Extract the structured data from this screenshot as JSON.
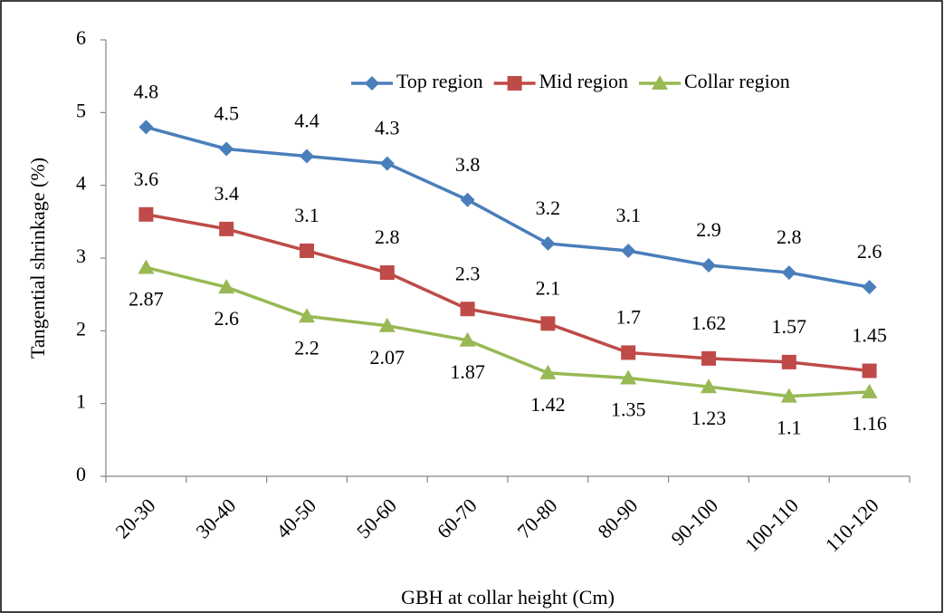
{
  "chart_data": {
    "type": "line",
    "x_label": "GBH at collar height (Cm)",
    "y_label": "Tangential shrinkage (%)",
    "categories": [
      "20-30",
      "30-40",
      "40-50",
      "50-60",
      "60-70",
      "70-80",
      "80-90",
      "90-100",
      "100-110",
      "110-120"
    ],
    "series": [
      {
        "name": "Top region",
        "color": "#4a7ebb",
        "marker": "diamond",
        "label_position": "above",
        "values": [
          4.8,
          4.5,
          4.4,
          4.3,
          3.8,
          3.2,
          3.1,
          2.9,
          2.8,
          2.6
        ]
      },
      {
        "name": "Mid region",
        "color": "#be4b48",
        "marker": "square",
        "label_position": "above",
        "values": [
          3.6,
          3.4,
          3.1,
          2.8,
          2.3,
          2.1,
          1.7,
          1.62,
          1.57,
          1.45
        ]
      },
      {
        "name": "Collar region",
        "color": "#98b954",
        "marker": "triangle",
        "label_position": "below",
        "values": [
          2.87,
          2.6,
          2.2,
          2.07,
          1.87,
          1.42,
          1.35,
          1.23,
          1.1,
          1.16
        ]
      }
    ],
    "ylim": [
      0,
      6
    ],
    "yticks": [
      0,
      1,
      2,
      3,
      4,
      5,
      6
    ],
    "grid": false,
    "legend": "top"
  }
}
